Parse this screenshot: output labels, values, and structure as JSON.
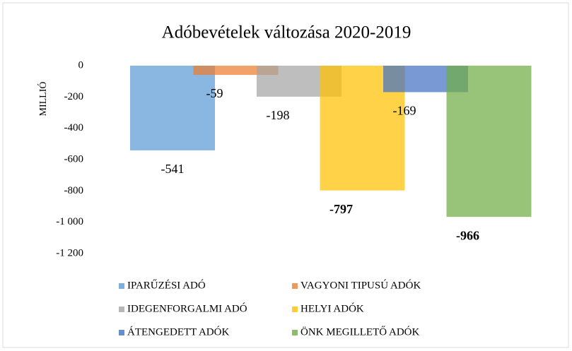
{
  "chart_data": {
    "type": "bar",
    "title": "Adóbevételek változása 2020-2019",
    "y_label": "MILLIÓ",
    "series": [
      {
        "name": "IPARŰZÉSI ADÓ",
        "color": "#5b9bd5",
        "values": [
          -541
        ]
      },
      {
        "name": "VAGYONI TIPUSÚ ADÓK",
        "color": "#ed7d31",
        "values": [
          -59
        ]
      },
      {
        "name": "IDEGENFORGALMI ADÓ",
        "color": "#a5a5a5",
        "values": [
          -198
        ]
      },
      {
        "name": "HELYI ADÓK",
        "color": "#ffc000",
        "values": [
          -797
        ],
        "label_bold": true
      },
      {
        "name": "ÁTENGEDETT ADÓK",
        "color": "#4472c4",
        "values": [
          -169
        ]
      },
      {
        "name": "ÖNK MEGILLETŐ ADÓK",
        "color": "#70ad47",
        "values": [
          -966
        ],
        "label_bold": true
      }
    ],
    "ylim": [
      -1200,
      0
    ],
    "yticks": [
      0,
      -200,
      -400,
      -600,
      -800,
      {
        "value": -1000,
        "label": "-1 000"
      },
      {
        "value": -1200,
        "label": "-1 200"
      }
    ],
    "legend": "bottom"
  }
}
